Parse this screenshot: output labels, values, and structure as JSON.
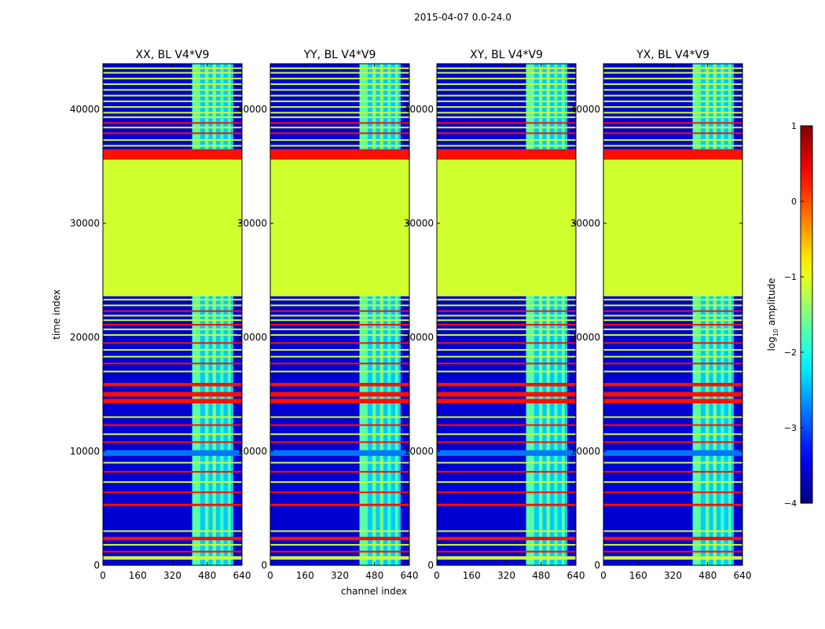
{
  "figure": {
    "title": "2015-04-07 0.0-24.0",
    "shared_xlabel": "channel index",
    "shared_ylabel": "time index"
  },
  "chart_data": {
    "type": "heatmap",
    "xlabel": "channel index",
    "ylabel": "time index",
    "xlim": [
      0,
      640
    ],
    "ylim": [
      0,
      44000
    ],
    "xticks": [
      0,
      160,
      320,
      480,
      640
    ],
    "yticks": [
      0,
      10000,
      20000,
      30000,
      40000
    ],
    "panels": [
      {
        "title": "XX, BL V4*V9"
      },
      {
        "title": "YY, BL V4*V9"
      },
      {
        "title": "XY, BL V4*V9"
      },
      {
        "title": "YX, BL V4*V9"
      }
    ],
    "colorbar": {
      "label_prefix": "log",
      "label_sub": "10",
      "label_suffix": " amplitude",
      "vmin": -4,
      "vmax": 1,
      "ticks": [
        1,
        0,
        -1,
        -2,
        -3,
        -4
      ],
      "tick_labels": [
        "1",
        "0",
        "−1",
        "−2",
        "−3",
        "−4"
      ],
      "colormap": "jet"
    },
    "background_level": -3.6,
    "rfi_band": {
      "channel_start": 410,
      "channel_end": 600,
      "level": -2.2
    },
    "rfi_columns": [
      [
        412,
        448,
        -1.7
      ],
      [
        470,
        486,
        -1.6
      ],
      [
        505,
        520,
        -1.5
      ],
      [
        540,
        555,
        -1.8
      ],
      [
        575,
        588,
        -1.7
      ]
    ],
    "flag_blocks": [
      {
        "time_start": 23600,
        "time_end": 35600,
        "level": -1.1
      },
      {
        "time_start": 35600,
        "time_end": 36500,
        "level": 0.3
      },
      {
        "time_start": 14200,
        "time_end": 14600,
        "level": 0.3
      },
      {
        "time_start": 14800,
        "time_end": 15200,
        "level": 0.3
      },
      {
        "time_start": 15700,
        "time_end": 16000,
        "level": 0.3
      },
      {
        "time_start": 2200,
        "time_end": 2500,
        "level": 0.3
      },
      {
        "time_start": 5200,
        "time_end": 5400,
        "level": 0.3
      },
      {
        "time_start": 500,
        "time_end": 800,
        "level": -1.1
      },
      {
        "time_start": 9600,
        "time_end": 10100,
        "level": -2.8
      }
    ],
    "flag_lines": [
      {
        "time": 1200,
        "level": 0.3
      },
      {
        "time": 1800,
        "level": -1.1
      },
      {
        "time": 3000,
        "level": -1.1
      },
      {
        "time": 6400,
        "level": 0.3
      },
      {
        "time": 7300,
        "level": -1.1
      },
      {
        "time": 8200,
        "level": 0.3
      },
      {
        "time": 9000,
        "level": -1.1
      },
      {
        "time": 10800,
        "level": 0.3
      },
      {
        "time": 11500,
        "level": -1.1
      },
      {
        "time": 12300,
        "level": 0.3
      },
      {
        "time": 13000,
        "level": -1.1
      },
      {
        "time": 17000,
        "level": -1.1
      },
      {
        "time": 17700,
        "level": 0.3
      },
      {
        "time": 18300,
        "level": -1.1
      },
      {
        "time": 18900,
        "level": -1.1
      },
      {
        "time": 19500,
        "level": 0.3
      },
      {
        "time": 20200,
        "level": -1.1
      },
      {
        "time": 20700,
        "level": -1.1
      },
      {
        "time": 21100,
        "level": 0.3
      },
      {
        "time": 21500,
        "level": -1.1
      },
      {
        "time": 21900,
        "level": -1.1
      },
      {
        "time": 22300,
        "level": 0.3
      },
      {
        "time": 22800,
        "level": -1.1
      },
      {
        "time": 23300,
        "level": -1.1
      },
      {
        "time": 36800,
        "level": -1.1
      },
      {
        "time": 37300,
        "level": -1.1
      },
      {
        "time": 37900,
        "level": 0.3
      },
      {
        "time": 38400,
        "level": -1.1
      },
      {
        "time": 38800,
        "level": 0.3
      },
      {
        "time": 39300,
        "level": -1.1
      },
      {
        "time": 39700,
        "level": -1.1
      },
      {
        "time": 40200,
        "level": -1.1
      },
      {
        "time": 40700,
        "level": -1.1
      },
      {
        "time": 41200,
        "level": -1.1
      },
      {
        "time": 41700,
        "level": -1.1
      },
      {
        "time": 42200,
        "level": -1.1
      },
      {
        "time": 42700,
        "level": -1.1
      },
      {
        "time": 43200,
        "level": -1.1
      },
      {
        "time": 43600,
        "level": -1.1
      }
    ]
  }
}
